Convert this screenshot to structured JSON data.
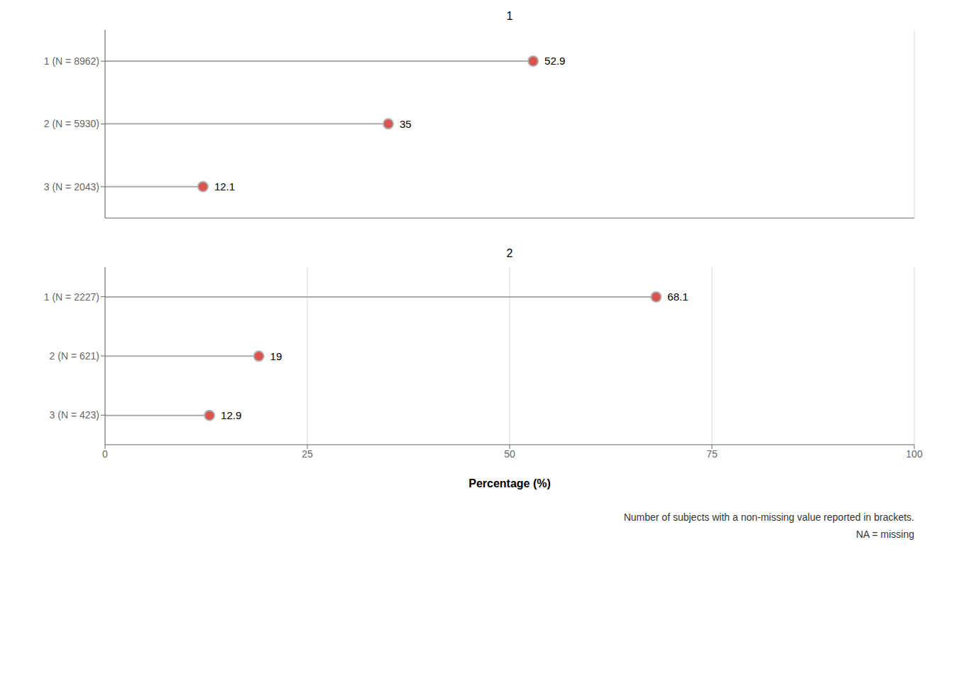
{
  "chart_data": [
    {
      "type": "lollipop",
      "title": "1",
      "orientation": "horizontal",
      "categories": [
        "1 (N = 8962)",
        "2 (N = 5930)",
        "3 (N = 2043)"
      ],
      "values": [
        52.9,
        35.0,
        12.1
      ],
      "data_labels": true,
      "color": "#d9534f",
      "xlim": [
        0,
        100
      ],
      "xticks": [
        0,
        25,
        50,
        75,
        100
      ],
      "grid": true,
      "tick_labels": "y"
    },
    {
      "type": "lollipop",
      "title": "2",
      "orientation": "horizontal",
      "categories": [
        "1 (N = 2227)",
        "2 (N = 621)",
        "3 (N = 423)"
      ],
      "values": [
        68.1,
        19.0,
        12.9
      ],
      "data_labels": true,
      "color": "#d9534f",
      "xlim": [
        0,
        100
      ],
      "xticks": [
        0,
        25,
        50,
        75,
        100
      ],
      "grid": true,
      "x_label": "Percentage (%)",
      "annotations": [
        "Number of subjects with a non-missing value reported in brackets.",
        "NA = missing"
      ]
    }
  ]
}
